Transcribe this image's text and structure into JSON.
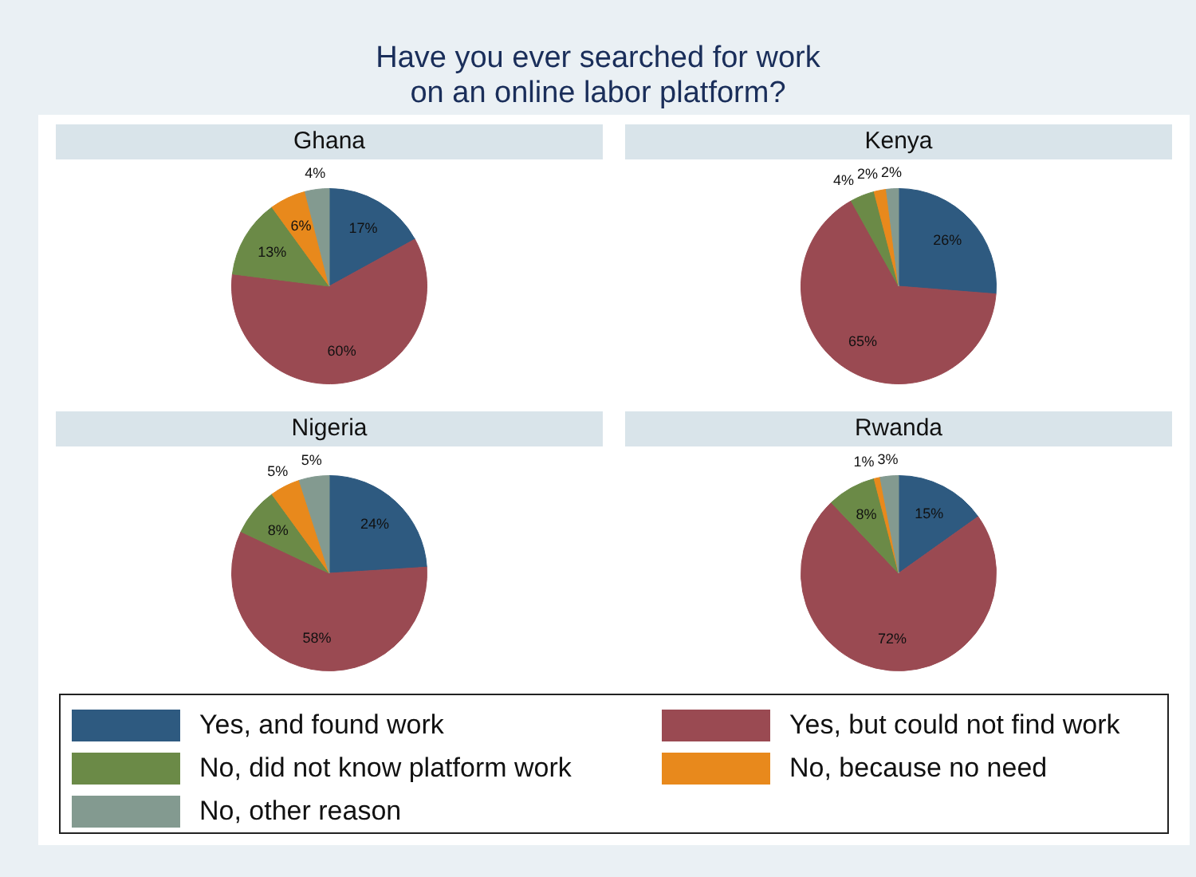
{
  "chart_data": [
    {
      "type": "pie",
      "title": "Ghana",
      "legend": "bottom",
      "annotations": [
        "Have you ever searched for work\non an online labor platform?"
      ],
      "categories": [
        "Yes, and found work",
        "Yes, but could not find work",
        "No, did not know platform work",
        "No, because no need",
        "No, other reason"
      ],
      "values": [
        17,
        60,
        13,
        6,
        4
      ],
      "value_labels": [
        "17%",
        "60%",
        "13%",
        "6%",
        "4%"
      ],
      "colors": [
        "#2e5a80",
        "#9a4a52",
        "#6b8a47",
        "#e8891c",
        "#839a90"
      ]
    },
    {
      "type": "pie",
      "title": "Kenya",
      "categories": [
        null,
        null,
        null,
        null,
        null
      ],
      "values": [
        26,
        65,
        4,
        2,
        2
      ],
      "value_labels": [
        "26%",
        "65%",
        "4%",
        "2%",
        "2%"
      ],
      "colors": [
        "#2e5a80",
        "#9a4a52",
        "#6b8a47",
        "#e8891c",
        "#839a90"
      ]
    },
    {
      "type": "pie",
      "title": "Nigeria",
      "categories": [
        null,
        null,
        null,
        null,
        null
      ],
      "values": [
        24,
        58,
        8,
        5,
        5
      ],
      "value_labels": [
        "24%",
        "58%",
        "8%",
        "5%",
        "5%"
      ],
      "colors": [
        "#2e5a80",
        "#9a4a52",
        "#6b8a47",
        "#e8891c",
        "#839a90"
      ]
    },
    {
      "type": "pie",
      "title": "Rwanda",
      "categories": [
        null,
        null,
        null,
        null,
        null
      ],
      "values": [
        15,
        72,
        8,
        1,
        3
      ],
      "value_labels": [
        "15%",
        "72%",
        "8%",
        "1%",
        "3%"
      ],
      "colors": [
        "#2e5a80",
        "#9a4a52",
        "#6b8a47",
        "#e8891c",
        "#839a90"
      ]
    }
  ]
}
